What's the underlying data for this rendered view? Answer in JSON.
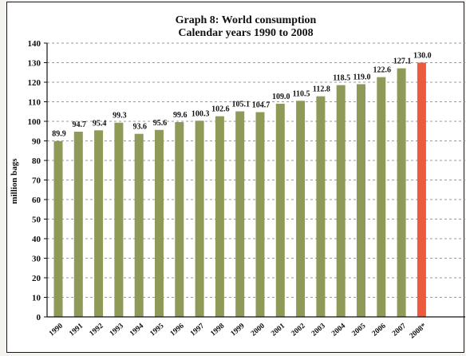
{
  "chart_data": {
    "type": "bar",
    "title": "Graph 8: World consumption",
    "subtitle": "Calendar years 1990 to 2008",
    "ylabel": "million bags",
    "xlabel": "",
    "ylim": [
      0,
      140
    ],
    "yticks": [
      0,
      10,
      20,
      30,
      40,
      50,
      60,
      70,
      80,
      90,
      100,
      110,
      120,
      130,
      140
    ],
    "grid": true,
    "categories": [
      "1990",
      "1991",
      "1992",
      "1993",
      "1994",
      "1995",
      "1996",
      "1997",
      "1998",
      "1999",
      "2000",
      "2001",
      "2002",
      "2003",
      "2004",
      "2005",
      "2006",
      "2007",
      "2008*"
    ],
    "values": [
      89.9,
      94.7,
      95.4,
      99.3,
      93.6,
      95.6,
      99.6,
      100.3,
      102.6,
      105.1,
      104.7,
      109.0,
      110.5,
      112.8,
      118.5,
      119.0,
      122.6,
      127.1,
      130.0
    ],
    "value_labels": [
      "89.9",
      "94.7",
      "95.4",
      "99.3",
      "93.6",
      "95.6",
      "99.6",
      "100.3",
      "102.6",
      "105.1",
      "104.7",
      "109.0",
      "110.5",
      "112.8",
      "118.5",
      "119.0",
      "122.6",
      "127.1",
      "130.0"
    ],
    "colors": {
      "bar": "#8f9a58",
      "bar_highlight": "#ee5a3c",
      "axis": "#111111",
      "grid": "#777777"
    },
    "highlight_index": 18
  }
}
